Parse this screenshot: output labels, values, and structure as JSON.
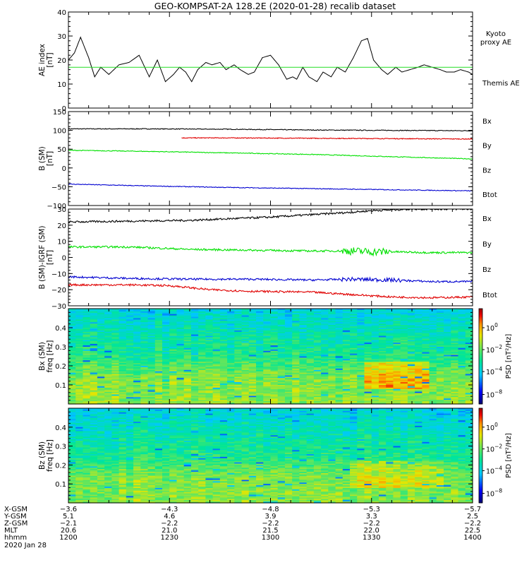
{
  "title": "GEO-KOMPSAT-2A 128.2E (2020-01-28) recalib dataset",
  "colors": {
    "black": "#000000",
    "green": "#00e000",
    "red": "#e00000",
    "blue": "#0000d0",
    "kyoto": "#22dd22"
  },
  "chart_data": [
    {
      "id": "ae",
      "type": "line",
      "ylabel_lines": [
        "AE index",
        "[nT]"
      ],
      "ylim": [
        0,
        40
      ],
      "yticks": [
        0,
        10,
        20,
        30,
        40
      ],
      "legend": [
        {
          "text": "Kyoto",
          "color": "#22dd22"
        },
        {
          "text": "proxy AE",
          "color": "#22dd22"
        },
        {
          "text": "Themis AE",
          "color": "#000000"
        }
      ],
      "series": [
        {
          "color": "#000000",
          "x": [
            0,
            3,
            6,
            10,
            13,
            16,
            20,
            25,
            30,
            35,
            40,
            44,
            48,
            52,
            55,
            58,
            61,
            64,
            68,
            71,
            75,
            78,
            82,
            85,
            89,
            92,
            96,
            100,
            104,
            108,
            111,
            113,
            116,
            119,
            123,
            126,
            130,
            133,
            137,
            141,
            145,
            148,
            151,
            155,
            158,
            162,
            165,
            169,
            173,
            176,
            180,
            184,
            187,
            191,
            194,
            198,
            200
          ],
          "y": [
            20,
            23,
            29.5,
            21,
            13,
            17,
            14,
            18,
            19,
            22,
            13,
            20,
            11,
            14,
            17,
            15,
            11,
            16,
            19,
            18,
            19,
            16,
            18,
            16,
            14,
            15,
            21,
            22,
            18,
            12,
            13,
            12,
            17,
            13,
            11,
            15,
            13,
            17,
            15,
            21,
            28,
            29,
            20,
            16,
            14,
            17,
            15,
            16,
            17,
            18,
            17,
            16,
            15,
            15,
            16,
            15,
            14
          ]
        },
        {
          "color": "#22dd22",
          "x": [
            0,
            200
          ],
          "y": [
            17,
            17
          ]
        }
      ]
    },
    {
      "id": "bsm",
      "type": "line",
      "ylabel_lines": [
        "B (SM)",
        "[nT]"
      ],
      "ylim": [
        -100,
        150
      ],
      "yticks": [
        -100,
        -50,
        0,
        50,
        100,
        150
      ],
      "legend": [
        {
          "text": "Bx",
          "color": "#0000d0"
        },
        {
          "text": "By",
          "color": "#00e000"
        },
        {
          "text": "Bz",
          "color": "#e00000"
        },
        {
          "text": "Btot",
          "color": "#000000"
        }
      ],
      "series": [
        {
          "color": "#000000",
          "x": [
            0,
            40,
            80,
            100,
            120,
            160,
            200
          ],
          "y": [
            104,
            104,
            103,
            102,
            101,
            100,
            99
          ]
        },
        {
          "color": "#e00000",
          "x": [
            56,
            80,
            120,
            160,
            200
          ],
          "y": [
            80,
            80,
            79,
            78,
            77
          ]
        },
        {
          "color": "#00e000",
          "x": [
            0,
            40,
            80,
            120,
            160,
            200
          ],
          "y": [
            47,
            44,
            40,
            36,
            30,
            24
          ]
        },
        {
          "color": "#0000d0",
          "x": [
            0,
            40,
            80,
            120,
            160,
            200
          ],
          "y": [
            -43,
            -48,
            -52,
            -55,
            -58,
            -61
          ]
        }
      ]
    },
    {
      "id": "bres",
      "type": "line",
      "ylabel_lines": [
        "B (SM)-IGRF (SM)",
        "[nT]"
      ],
      "ylim": [
        -30,
        30
      ],
      "yticks": [
        -30,
        -20,
        -10,
        0,
        10,
        20,
        30
      ],
      "legend": [
        {
          "text": "Bx",
          "color": "#0000d0"
        },
        {
          "text": "By",
          "color": "#00e000"
        },
        {
          "text": "Bz",
          "color": "#e00000"
        },
        {
          "text": "Btot",
          "color": "#000000"
        }
      ],
      "series": [
        {
          "color": "#000000",
          "x": [
            0,
            30,
            60,
            80,
            100,
            120,
            140,
            150,
            160,
            170,
            180,
            200
          ],
          "y": [
            22,
            22.5,
            23,
            24,
            25,
            26.5,
            28,
            29,
            29.5,
            30,
            30,
            30
          ]
        },
        {
          "color": "#00e000",
          "x": [
            0,
            30,
            60,
            90,
            120,
            140,
            150,
            160,
            180,
            200
          ],
          "y": [
            6.5,
            6.5,
            5,
            4.5,
            4,
            4,
            3.5,
            3.5,
            3,
            3
          ]
        },
        {
          "color": "#0000d0",
          "x": [
            0,
            30,
            60,
            90,
            120,
            140,
            160,
            180,
            200
          ],
          "y": [
            -12,
            -13,
            -13.5,
            -13.5,
            -14,
            -13.5,
            -14,
            -15,
            -15
          ]
        },
        {
          "color": "#e00000",
          "x": [
            0,
            30,
            50,
            70,
            90,
            120,
            140,
            160,
            180,
            200
          ],
          "y": [
            -17,
            -17,
            -17.5,
            -20,
            -21,
            -21.5,
            -23,
            -24.5,
            -25,
            -24.5
          ]
        }
      ]
    },
    {
      "id": "bx-spec",
      "type": "heatmap",
      "ylabel_lines": [
        "Bx (SM)",
        "freq [Hz]"
      ],
      "ylim": [
        0,
        0.5
      ],
      "yticks": [
        0.1,
        0.2,
        0.3,
        0.4
      ],
      "ytick_labels": [
        "0.1",
        "0.2",
        "0.3",
        "0.4"
      ],
      "colorbar_label": "PSD [nT²/Hz]",
      "colorbar_ticks": [
        {
          "base": "10",
          "exp": "0",
          "frac": 0.2
        },
        {
          "base": "10",
          "exp": "−2",
          "frac": 0.43
        },
        {
          "base": "10",
          "exp": "−4",
          "frac": 0.66
        },
        {
          "base": "10",
          "exp": "−8",
          "frac": 0.9
        }
      ],
      "enhancement": {
        "x": [
          145,
          180
        ],
        "freq": [
          0.08,
          0.22
        ],
        "strength": 1.0
      }
    },
    {
      "id": "bz-spec",
      "type": "heatmap",
      "ylabel_lines": [
        "Bz (SM)",
        "freq [Hz]"
      ],
      "ylim": [
        0,
        0.5
      ],
      "yticks": [
        0.1,
        0.2,
        0.3,
        0.4
      ],
      "ytick_labels": [
        "0.1",
        "0.2",
        "0.3",
        "0.4"
      ],
      "colorbar_label": "PSD [nT²/Hz]",
      "colorbar_ticks": [
        {
          "base": "10",
          "exp": "0",
          "frac": 0.2
        },
        {
          "base": "10",
          "exp": "−2",
          "frac": 0.43
        },
        {
          "base": "10",
          "exp": "−4",
          "frac": 0.66
        },
        {
          "base": "10",
          "exp": "−8",
          "frac": 0.9
        }
      ],
      "enhancement": {
        "x": [
          140,
          185
        ],
        "freq": [
          0.08,
          0.22
        ],
        "strength": 0.55
      }
    }
  ],
  "x_axis": {
    "xlim": [
      0,
      200
    ],
    "major_ticks": [
      0,
      50,
      100,
      150,
      200
    ],
    "minor_step": 10,
    "row_labels": [
      "X-GSM",
      "Y-GSM",
      "Z-GSM",
      "MLT",
      "hhmm"
    ],
    "date_label": "2020 Jan 28",
    "columns": [
      [
        "−3.6",
        "5.1",
        "−2.1",
        "20.6",
        "1200"
      ],
      [
        "−4.3",
        "4.6",
        "−2.2",
        "21.0",
        "1230"
      ],
      [
        "−4.8",
        "3.9",
        "−2.2",
        "21.5",
        "1300"
      ],
      [
        "−5.3",
        "3.3",
        "−2.2",
        "22.0",
        "1330"
      ],
      [
        "−5.7",
        "2.5",
        "−2.2",
        "22.5",
        "1400"
      ]
    ]
  }
}
